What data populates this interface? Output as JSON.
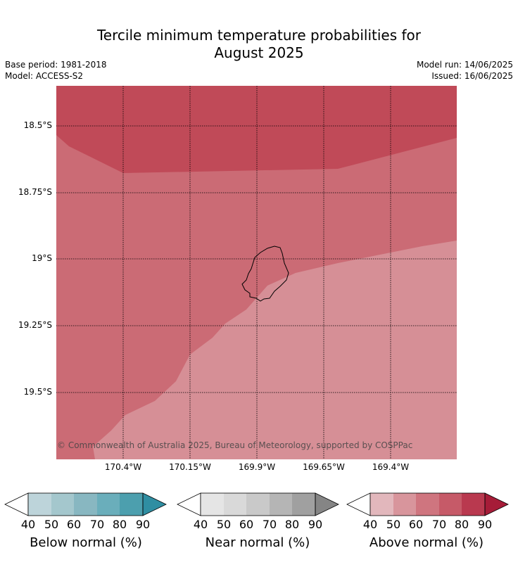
{
  "title_line1": "Tercile minimum temperature probabilities for",
  "title_line2": "August 2025",
  "meta_left": {
    "base_period": "Base period: 1981-2018",
    "model": "Model: ACCESS-S2"
  },
  "meta_right": {
    "model_run": "Model run: 14/06/2025",
    "issued": "Issued: 16/06/2025"
  },
  "copyright": "© Commonwealth of Australia 2025, Bureau of Meteorology, supported by COSPPac",
  "lat_ticks": [
    "18.5°S",
    "18.75°S",
    "19°S",
    "19.25°S",
    "19.5°S"
  ],
  "lon_ticks": [
    "170.4°W",
    "170.15°W",
    "169.9°W",
    "169.65°W",
    "169.4°W"
  ],
  "region_colors": {
    "above_80_90": "#c04a58",
    "above_70_80": "#cb6b75",
    "above_50_60": "#d68f96"
  },
  "colorbars": [
    {
      "label": "Below normal (%)",
      "ticks": [
        "40",
        "50",
        "60",
        "70",
        "80",
        "90"
      ],
      "colors": [
        "#ffffff",
        "#bdd4da",
        "#a4c7cd",
        "#88b7c1",
        "#6aaebb",
        "#4c9fae",
        "#2f8ea2"
      ]
    },
    {
      "label": "Near normal (%)",
      "ticks": [
        "40",
        "50",
        "60",
        "70",
        "80",
        "90"
      ],
      "colors": [
        "#ffffff",
        "#e5e5e5",
        "#d9d9d9",
        "#c9c9c9",
        "#b5b5b5",
        "#a0a0a0",
        "#858585"
      ]
    },
    {
      "label": "Above normal (%)",
      "ticks": [
        "40",
        "50",
        "60",
        "70",
        "80",
        "90"
      ],
      "colors": [
        "#ffffff",
        "#e2b7bc",
        "#d8959c",
        "#cf757f",
        "#c65a68",
        "#b9394f",
        "#a61c38"
      ]
    }
  ]
}
